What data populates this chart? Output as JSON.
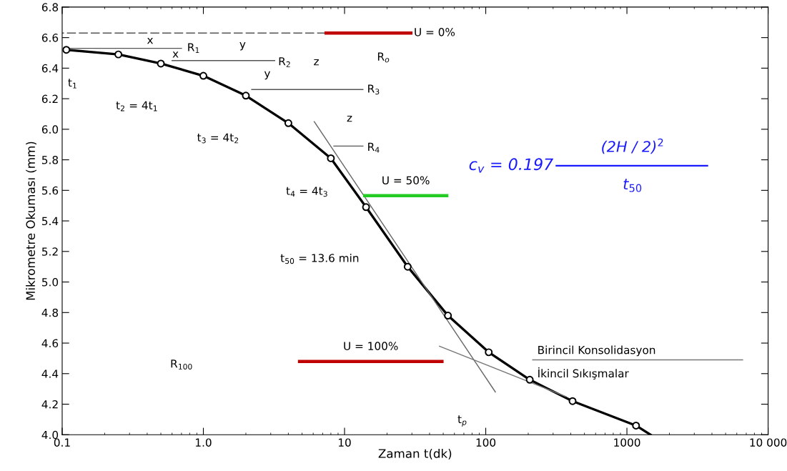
{
  "chart_data": {
    "type": "line",
    "xlabel": "Zaman t(dk)",
    "ylabel": "Mikrometre Okuması (mm)",
    "log": "x",
    "grid": false,
    "xlim": [
      0.1,
      10000
    ],
    "xticks": [
      0.1,
      {
        "value": 1,
        "label": "1.0"
      },
      10,
      100,
      1000,
      {
        "value": 10000,
        "label": "10 000"
      }
    ],
    "ylim": [
      4.0,
      6.8
    ],
    "yticks": [
      {
        "value": 4.0,
        "label": "4.0"
      },
      4.2,
      4.4,
      4.6,
      4.8,
      {
        "value": 5.0,
        "label": "5.0"
      },
      5.2,
      5.4,
      5.6,
      5.8,
      {
        "value": 6.0,
        "label": "6.0"
      },
      6.2,
      6.4,
      6.6,
      6.8
    ],
    "series": [
      {
        "color": "#000000",
        "marker": "none",
        "x": [
          0.107,
          0.25,
          0.5,
          1,
          2,
          4,
          8,
          14.2,
          28,
          54,
          105,
          205,
          412,
          1160,
          1470
        ],
        "values": [
          6.52,
          6.49,
          6.43,
          6.35,
          6.22,
          6.04,
          5.81,
          5.49,
          5.1,
          4.78,
          4.54,
          4.36,
          4.22,
          4.06,
          4.0
        ]
      },
      {
        "type": "scatter",
        "color": "#000000",
        "marker": "circle",
        "x": [
          0.107,
          0.25,
          0.5,
          1,
          2,
          4,
          8,
          14.2,
          28,
          54,
          105,
          205,
          412,
          1160
        ],
        "values": [
          6.52,
          6.49,
          6.43,
          6.35,
          6.22,
          6.04,
          5.81,
          5.49,
          5.1,
          4.78,
          4.54,
          4.36,
          4.22,
          4.06
        ]
      },
      {
        "type": "line",
        "color": "#555555",
        "marker": "none",
        "line_style": "dashed",
        "x": [
          0.1,
          7.4
        ],
        "values": [
          6.63,
          6.63
        ]
      },
      {
        "type": "line",
        "color": "#555555",
        "marker": "none",
        "x": [
          0.11,
          0.7
        ],
        "values": [
          6.53,
          6.53
        ]
      },
      {
        "type": "line",
        "color": "#555555",
        "marker": "none",
        "x": [
          0.6,
          3.2
        ],
        "values": [
          6.45,
          6.45
        ]
      },
      {
        "type": "line",
        "color": "#555555",
        "marker": "none",
        "x": [
          2.2,
          13.5
        ],
        "values": [
          6.26,
          6.26
        ]
      },
      {
        "type": "line",
        "color": "#555555",
        "marker": "none",
        "x": [
          8.4,
          13.5
        ],
        "values": [
          5.89,
          5.89
        ]
      },
      {
        "type": "line",
        "color": "#666666",
        "marker": "none",
        "x": [
          6.1,
          117
        ],
        "values": [
          6.05,
          4.28
        ]
      },
      {
        "type": "line",
        "color": "#777777",
        "marker": "none",
        "x": [
          47,
          370
        ],
        "values": [
          4.58,
          4.25
        ]
      },
      {
        "type": "line",
        "color": "#777777",
        "marker": "none",
        "x": [
          215,
          6600
        ],
        "values": [
          4.49,
          4.49
        ]
      },
      {
        "type": "line",
        "name": "U = 0%",
        "color": "#c00000",
        "marker": "none",
        "x": [
          7.4,
          29.5
        ],
        "values": [
          6.63,
          6.63
        ]
      },
      {
        "type": "line",
        "name": "U = 50%",
        "color": "#22cc22",
        "marker": "none",
        "x": [
          13.9,
          53
        ],
        "values": [
          5.565,
          5.565
        ]
      },
      {
        "type": "line",
        "name": "U = 100%",
        "color": "#c00000",
        "marker": "none",
        "x": [
          4.8,
          49
        ],
        "values": [
          4.48,
          4.48
        ]
      }
    ],
    "annotations": [
      "c$_{v}$ = 0.197",
      "(2H / 2)$^{2}$",
      "t$_{50}$",
      "R$_{o}$",
      "R$_{1}$",
      "R$_{2}$",
      "R$_{3}$",
      "R$_{4}$",
      "x",
      "x",
      "y",
      "y",
      "z",
      "z",
      "t$_{1}$",
      "t$_{2}$ = 4t$_{1}$",
      "t$_{3}$ = 4t$_{2}$",
      "t$_{4}$ = 4t$_{3}$",
      "t$_{50}$ = 13.6 min",
      "R$_{100}$",
      "Birincil Konsolidasyon",
      "İkincil Sıkışmalar",
      "t$_{p}$"
    ]
  }
}
